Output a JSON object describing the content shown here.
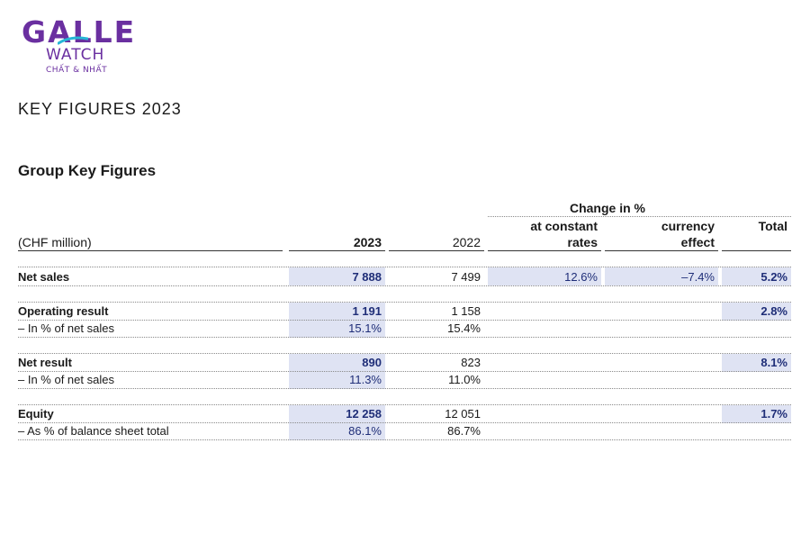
{
  "logo": {
    "brand": "GALLE",
    "sub": "WATCH",
    "tagline": "CHẤT & NHẤT",
    "color": "#6a2fa0",
    "accent": "#27b6d6"
  },
  "page_heading": "KEY FIGURES 2023",
  "section_title": "Group Key Figures",
  "table": {
    "group_header": "Change in %",
    "col_unit": "(CHF million)",
    "col_2023": "2023",
    "col_2022": "2022",
    "col_constant_1": "at constant",
    "col_constant_2": "rates",
    "col_currency_1": "currency",
    "col_currency_2": "effect",
    "col_total": "Total",
    "rows": [
      {
        "label": "Net sales",
        "v2023": "7 888",
        "v2022": "7 499",
        "constant": "12.6%",
        "currency": "–7.4%",
        "total": "5.2%"
      },
      {
        "label": "Operating result",
        "v2023": "1 191",
        "v2022": "1 158",
        "constant": "",
        "currency": "",
        "total": "2.8%"
      },
      {
        "label": "– In % of net sales",
        "v2023": "15.1%",
        "v2022": "15.4%",
        "constant": "",
        "currency": "",
        "total": ""
      },
      {
        "label": "Net result",
        "v2023": "890",
        "v2022": "823",
        "constant": "",
        "currency": "",
        "total": "8.1%"
      },
      {
        "label": "– In % of net sales",
        "v2023": "11.3%",
        "v2022": "11.0%",
        "constant": "",
        "currency": "",
        "total": ""
      },
      {
        "label": "Equity",
        "v2023": "12 258",
        "v2022": "12 051",
        "constant": "",
        "currency": "",
        "total": "1.7%"
      },
      {
        "label": "– As % of balance sheet total",
        "v2023": "86.1%",
        "v2022": "86.7%",
        "constant": "",
        "currency": "",
        "total": ""
      }
    ]
  },
  "colors": {
    "highlight": "#dfe3f3",
    "navy": "#1f2e78"
  }
}
